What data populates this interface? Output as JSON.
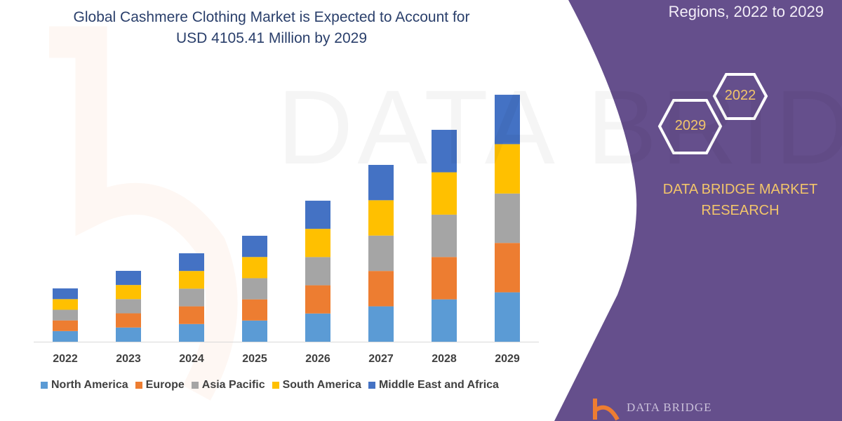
{
  "title_lines": [
    "Global Cashmere Clothing Market is Expected to Account for",
    "USD 4105.41 Million by 2029"
  ],
  "side_title": "Regions, 2022 to 2029",
  "hexagons": [
    "2029",
    "2022"
  ],
  "brand": [
    "DATA BRIDGE MARKET",
    "RESEARCH"
  ],
  "watermark": "DATA BRIDGE",
  "logo_text": "DATA BRIDGE",
  "colors": {
    "panel": "#654f8c",
    "brand_text": "#f2c56a",
    "title": "#2a3f6b"
  },
  "chart_data": {
    "type": "bar",
    "stacked": true,
    "title": "Global Cashmere Clothing Market is Expected to Account for USD 4105.41 Million by 2029",
    "categories": [
      "2022",
      "2023",
      "2024",
      "2025",
      "2026",
      "2027",
      "2028",
      "2029"
    ],
    "series": [
      {
        "name": "North America",
        "color": "#5b9bd5",
        "values": [
          177,
          236,
          294,
          352,
          469,
          588,
          704,
          821
        ]
      },
      {
        "name": "Europe",
        "color": "#ed7d31",
        "values": [
          177,
          236,
          294,
          352,
          469,
          588,
          704,
          821
        ]
      },
      {
        "name": "Asia Pacific",
        "color": "#a5a5a5",
        "values": [
          177,
          236,
          294,
          352,
          469,
          588,
          704,
          821
        ]
      },
      {
        "name": "South America",
        "color": "#ffc000",
        "values": [
          177,
          235,
          294,
          352,
          469,
          588,
          704,
          821
        ]
      },
      {
        "name": "Middle East and Africa",
        "color": "#4472c4",
        "values": [
          178,
          235,
          294,
          353,
          468,
          587,
          706,
          821
        ]
      }
    ],
    "xlabel": "",
    "ylabel": "",
    "ylim": [
      0,
      4105.41
    ],
    "grid": false,
    "legend": "bottom"
  }
}
